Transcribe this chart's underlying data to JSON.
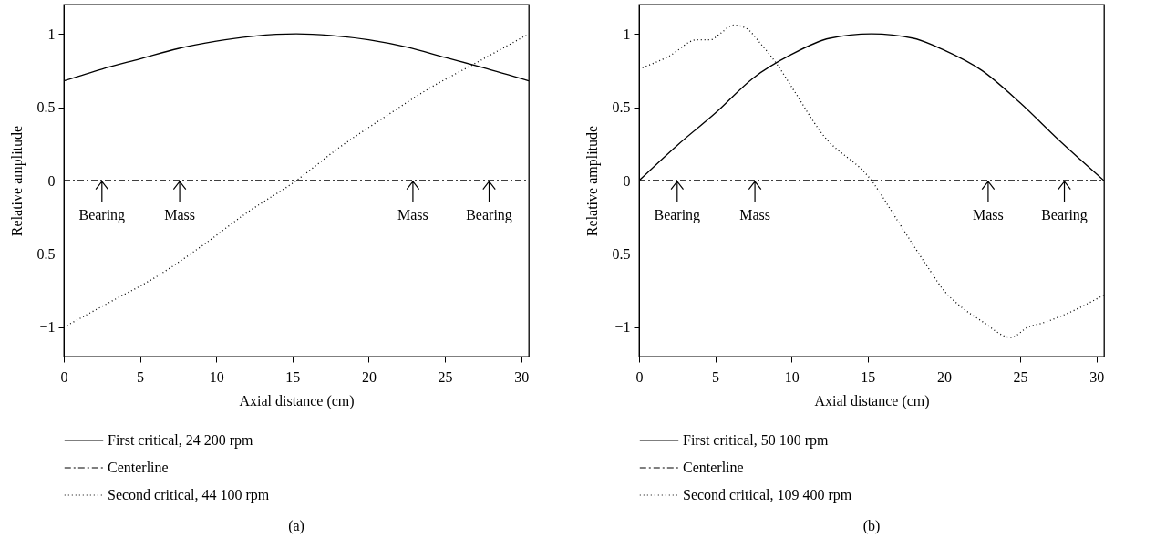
{
  "chart_data": [
    {
      "type": "line",
      "title": "(a)",
      "xlabel": "Axial distance (cm)",
      "ylabel": "Relative amplitude",
      "xlim": [
        0,
        30.5
      ],
      "ylim": [
        -1.2,
        1.2
      ],
      "xticks": [
        0,
        5,
        10,
        15,
        20,
        25,
        30
      ],
      "yticks": [
        -1,
        -0.5,
        0,
        0.5,
        1
      ],
      "grid": false,
      "legend": "bottom",
      "marker": "none",
      "series": [
        {
          "name": "First critical, 24 200 rpm",
          "color": "#000000",
          "line_style": "solid",
          "x": [
            0,
            2.5,
            5,
            7.5,
            10,
            12.5,
            15.25,
            17.5,
            20,
            22.5,
            25,
            27.5,
            30.5
          ],
          "values": [
            0.68,
            0.76,
            0.83,
            0.9,
            0.95,
            0.985,
            1.0,
            0.99,
            0.96,
            0.91,
            0.84,
            0.77,
            0.68
          ]
        },
        {
          "name": "Centerline",
          "color": "#000000",
          "line_style": "dashdot",
          "x": [
            0,
            30.5
          ],
          "values": [
            0,
            0
          ]
        },
        {
          "name": "Second critical, 44 100 rpm",
          "color": "#000000",
          "line_style": "dotted",
          "x": [
            0,
            3,
            6,
            9,
            12,
            15.25,
            18,
            21,
            24,
            27,
            30.5
          ],
          "values": [
            -1,
            -0.83,
            -0.66,
            -0.45,
            -0.22,
            0,
            0.22,
            0.43,
            0.63,
            0.8,
            1
          ]
        }
      ],
      "annotations": [
        {
          "text": "Bearing",
          "x": 2.5,
          "y": 0
        },
        {
          "text": "Mass",
          "x": 7.6,
          "y": 0
        },
        {
          "text": "Mass",
          "x": 22.9,
          "y": 0
        },
        {
          "text": "Bearing",
          "x": 27.9,
          "y": 0
        }
      ]
    },
    {
      "type": "line",
      "title": "(b)",
      "xlabel": "Axial distance (cm)",
      "ylabel": "Relative amplitude",
      "xlim": [
        0,
        30.5
      ],
      "ylim": [
        -1.2,
        1.2
      ],
      "xticks": [
        0,
        5,
        10,
        15,
        20,
        25,
        30
      ],
      "yticks": [
        -1,
        -0.5,
        0,
        0.5,
        1
      ],
      "grid": false,
      "legend": "bottom",
      "marker": "none",
      "series": [
        {
          "name": "First critical, 50 100 rpm",
          "color": "#000000",
          "line_style": "solid",
          "x": [
            0,
            2.5,
            5,
            7.5,
            10,
            12.5,
            15.25,
            18,
            20,
            22.5,
            25,
            27.5,
            30.5
          ],
          "values": [
            0,
            0.24,
            0.46,
            0.7,
            0.86,
            0.97,
            1,
            0.97,
            0.89,
            0.75,
            0.53,
            0.28,
            0
          ]
        },
        {
          "name": "Centerline",
          "color": "#000000",
          "line_style": "dashdot",
          "x": [
            0,
            30.5
          ],
          "values": [
            0,
            0
          ]
        },
        {
          "name": "Second critical, 109 400 rpm",
          "color": "#000000",
          "line_style": "dotted",
          "x": [
            0,
            2,
            3.8,
            4.7,
            5.3,
            6.2,
            7,
            8,
            9,
            10,
            12,
            15.25,
            17,
            19,
            20,
            21,
            22.5,
            24.4,
            25.5,
            26.5,
            28,
            30.5
          ],
          "values": [
            0.76,
            0.85,
            0.96,
            0.96,
            1.0,
            1.06,
            1.04,
            0.93,
            0.8,
            0.64,
            0.32,
            0,
            -0.28,
            -0.6,
            -0.75,
            -0.85,
            -0.96,
            -1.07,
            -1.0,
            -0.97,
            -0.91,
            -0.78
          ]
        }
      ],
      "annotations": [
        {
          "text": "Bearing",
          "x": 2.5,
          "y": 0
        },
        {
          "text": "Mass",
          "x": 7.6,
          "y": 0
        },
        {
          "text": "Mass",
          "x": 22.9,
          "y": 0
        },
        {
          "text": "Bearing",
          "x": 27.9,
          "y": 0
        }
      ]
    }
  ]
}
